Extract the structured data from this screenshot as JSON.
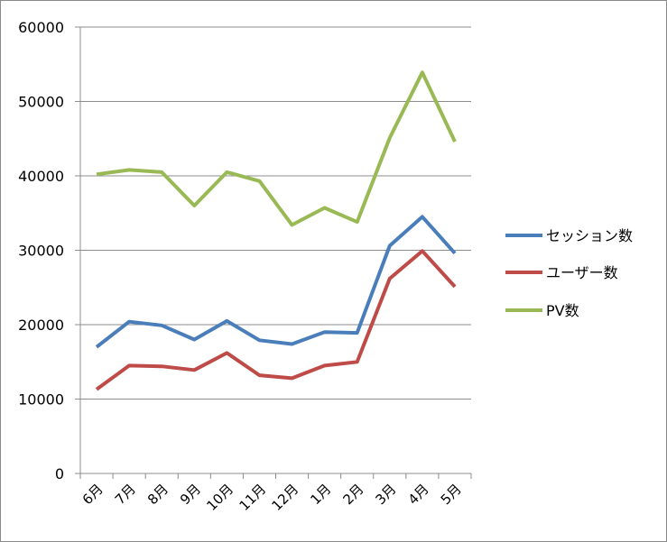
{
  "chart_data": {
    "type": "line",
    "categories": [
      "6月",
      "7月",
      "8月",
      "9月",
      "10月",
      "11月",
      "12月",
      "1月",
      "2月",
      "3月",
      "4月",
      "5月"
    ],
    "ylim": [
      0,
      60000
    ],
    "yticks": [
      "0",
      "10000",
      "20000",
      "30000",
      "40000",
      "50000",
      "60000"
    ],
    "grid": true,
    "legend_position": "right",
    "series": [
      {
        "name": "セッション数",
        "color": "#4a7ebb",
        "values": [
          17000,
          20400,
          19900,
          18000,
          20500,
          17900,
          17400,
          19000,
          18900,
          30600,
          34500,
          29600
        ]
      },
      {
        "name": "ユーザー数",
        "color": "#be4b48",
        "values": [
          11300,
          14500,
          14400,
          13900,
          16200,
          13200,
          12800,
          14500,
          15000,
          26200,
          29900,
          25100
        ]
      },
      {
        "name": "PV数",
        "color": "#98b954",
        "values": [
          40200,
          40800,
          40500,
          36000,
          40500,
          39300,
          33400,
          35700,
          33800,
          45100,
          53900,
          44600
        ]
      }
    ]
  }
}
